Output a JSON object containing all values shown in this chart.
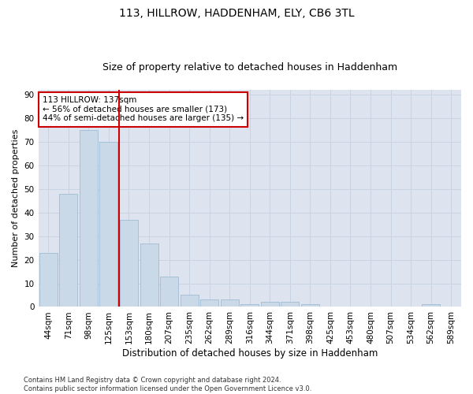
{
  "title1": "113, HILLROW, HADDENHAM, ELY, CB6 3TL",
  "title2": "Size of property relative to detached houses in Haddenham",
  "xlabel": "Distribution of detached houses by size in Haddenham",
  "ylabel": "Number of detached properties",
  "categories": [
    "44sqm",
    "71sqm",
    "98sqm",
    "125sqm",
    "153sqm",
    "180sqm",
    "207sqm",
    "235sqm",
    "262sqm",
    "289sqm",
    "316sqm",
    "344sqm",
    "371sqm",
    "398sqm",
    "425sqm",
    "453sqm",
    "480sqm",
    "507sqm",
    "534sqm",
    "562sqm",
    "589sqm"
  ],
  "values": [
    23,
    48,
    75,
    70,
    37,
    27,
    13,
    5,
    3,
    3,
    1,
    2,
    2,
    1,
    0,
    0,
    0,
    0,
    0,
    1,
    0
  ],
  "bar_color": "#c9d9e8",
  "bar_edge_color": "#a0bcd4",
  "red_line_color": "#cc0000",
  "annotation_text": "113 HILLROW: 137sqm\n← 56% of detached houses are smaller (173)\n44% of semi-detached houses are larger (135) →",
  "annotation_box_color": "#ffffff",
  "annotation_box_edge": "#cc0000",
  "ylim": [
    0,
    92
  ],
  "yticks": [
    0,
    10,
    20,
    30,
    40,
    50,
    60,
    70,
    80,
    90
  ],
  "grid_color": "#c8d4e4",
  "background_color": "#dde4f0",
  "footnote": "Contains HM Land Registry data © Crown copyright and database right 2024.\nContains public sector information licensed under the Open Government Licence v3.0.",
  "title1_fontsize": 10,
  "title2_fontsize": 9,
  "xlabel_fontsize": 8.5,
  "ylabel_fontsize": 8,
  "tick_fontsize": 7.5,
  "annot_fontsize": 7.5,
  "footnote_fontsize": 6
}
